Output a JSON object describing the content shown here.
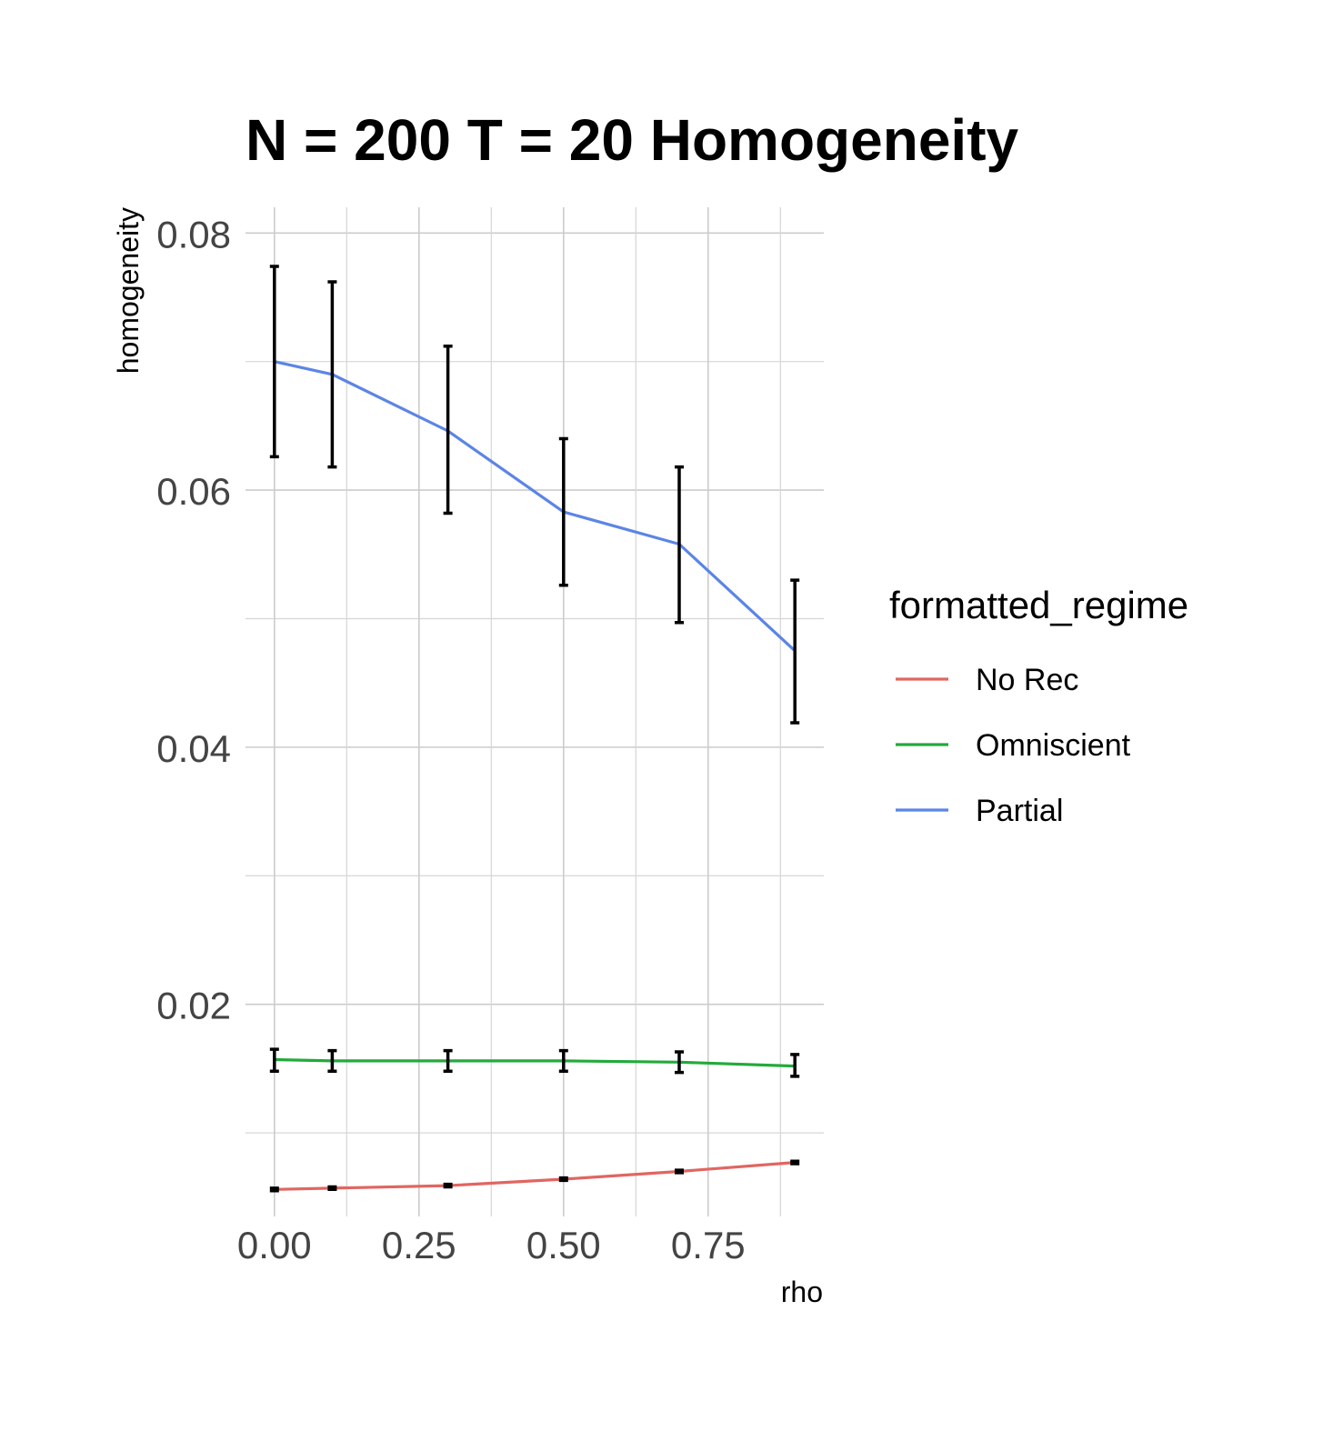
{
  "chart_data": {
    "type": "line",
    "title": "N = 200 T = 20 Homogeneity",
    "xlabel": "rho",
    "ylabel": "homogeneity",
    "xlim": [
      -0.05,
      0.95
    ],
    "ylim": [
      0.0035,
      0.082
    ],
    "x_ticks": [
      0.0,
      0.25,
      0.5,
      0.75
    ],
    "x_tick_labels": [
      "0.00",
      "0.25",
      "0.50",
      "0.75"
    ],
    "y_ticks": [
      0.02,
      0.04,
      0.06,
      0.08
    ],
    "y_tick_labels": [
      "0.02",
      "0.04",
      "0.06",
      "0.08"
    ],
    "grid": true,
    "legend": {
      "title": "formatted_regime",
      "position": "right"
    },
    "x": [
      0.0,
      0.1,
      0.3,
      0.5,
      0.7,
      0.9
    ],
    "series": [
      {
        "name": "No Rec",
        "color": "#e06661",
        "values": [
          0.0056,
          0.0057,
          0.0059,
          0.0064,
          0.007,
          0.0077
        ],
        "lower": [
          0.0055,
          0.0056,
          0.0058,
          0.0063,
          0.0069,
          0.0076
        ],
        "upper": [
          0.0057,
          0.0058,
          0.006,
          0.0065,
          0.0071,
          0.0078
        ]
      },
      {
        "name": "Omniscient",
        "color": "#22aa3a",
        "values": [
          0.0157,
          0.0156,
          0.0156,
          0.0156,
          0.0155,
          0.0152
        ],
        "lower": [
          0.0148,
          0.0148,
          0.0148,
          0.0148,
          0.0147,
          0.0144
        ],
        "upper": [
          0.0165,
          0.0164,
          0.0164,
          0.0164,
          0.0163,
          0.0161
        ]
      },
      {
        "name": "Partial",
        "color": "#5b85e6",
        "values": [
          0.07,
          0.069,
          0.0646,
          0.0583,
          0.0558,
          0.0475
        ],
        "lower": [
          0.0626,
          0.0618,
          0.0582,
          0.0526,
          0.0497,
          0.0419
        ],
        "upper": [
          0.0774,
          0.0762,
          0.0712,
          0.064,
          0.0618,
          0.053
        ]
      }
    ]
  }
}
